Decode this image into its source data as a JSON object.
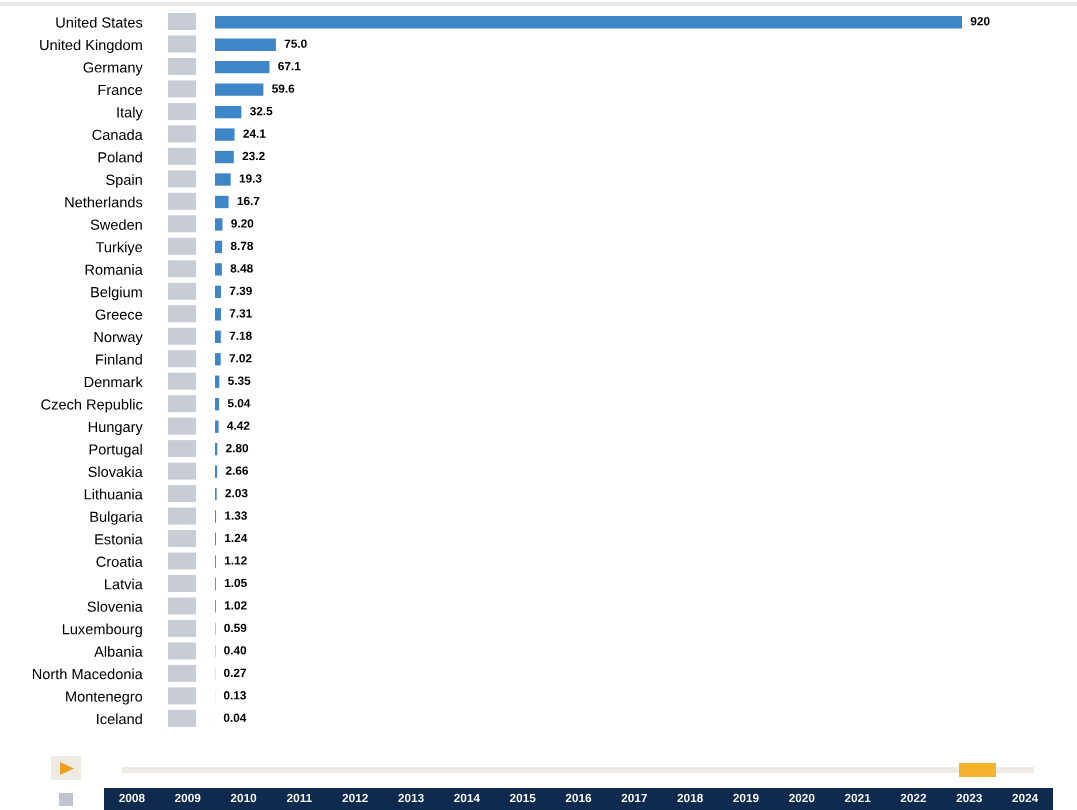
{
  "chart_data": {
    "type": "bar",
    "orientation": "horizontal",
    "color": "#3d87c8",
    "categories": [
      "United States",
      "United Kingdom",
      "Germany",
      "France",
      "Italy",
      "Canada",
      "Poland",
      "Spain",
      "Netherlands",
      "Sweden",
      "Turkiye",
      "Romania",
      "Belgium",
      "Greece",
      "Norway",
      "Finland",
      "Denmark",
      "Czech Republic",
      "Hungary",
      "Portugal",
      "Slovakia",
      "Lithuania",
      "Bulgaria",
      "Estonia",
      "Croatia",
      "Latvia",
      "Slovenia",
      "Luxembourg",
      "Albania",
      "North Macedonia",
      "Montenegro",
      "Iceland"
    ],
    "values": [
      920,
      75.0,
      67.1,
      59.6,
      32.5,
      24.1,
      23.2,
      19.3,
      16.7,
      9.2,
      8.78,
      8.48,
      7.39,
      7.31,
      7.18,
      7.02,
      5.35,
      5.04,
      4.42,
      2.8,
      2.66,
      2.03,
      1.33,
      1.24,
      1.12,
      1.05,
      1.02,
      0.59,
      0.4,
      0.27,
      0.13,
      0.04
    ],
    "value_labels": [
      "920",
      "75.0",
      "67.1",
      "59.6",
      "32.5",
      "24.1",
      "23.2",
      "19.3",
      "16.7",
      "9.20",
      "8.78",
      "8.48",
      "7.39",
      "7.31",
      "7.18",
      "7.02",
      "5.35",
      "5.04",
      "4.42",
      "2.80",
      "2.66",
      "2.03",
      "1.33",
      "1.24",
      "1.12",
      "1.05",
      "1.02",
      "0.59",
      "0.40",
      "0.27",
      "0.13",
      "0.04"
    ],
    "annotations": [
      "2008",
      "2009",
      "2010",
      "2011",
      "2012",
      "2013",
      "2014",
      "2015",
      "2016",
      "2017",
      "2018",
      "2019",
      "2020",
      "2021",
      "2022",
      "2023",
      "2024"
    ],
    "grid": false,
    "legend": false
  }
}
